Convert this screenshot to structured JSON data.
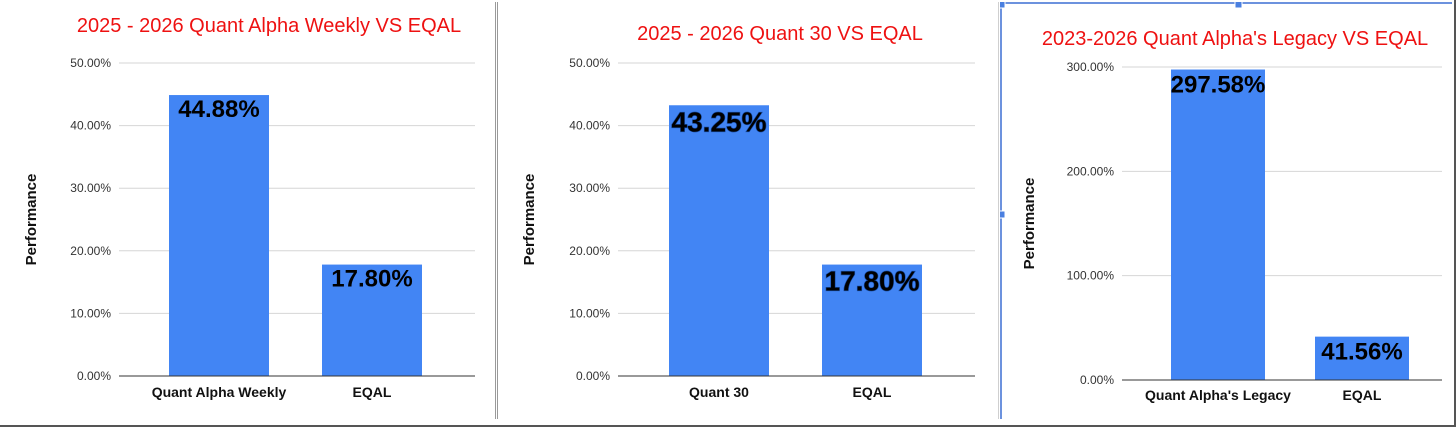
{
  "chart_data": [
    {
      "type": "bar",
      "title": "2025 - 2026 Quant Alpha Weekly VS EQAL",
      "xlabel": "",
      "ylabel": "Performance",
      "categories": [
        "Quant Alpha Weekly",
        "EQAL"
      ],
      "values": [
        44.88,
        17.8
      ],
      "value_labels": [
        "44.88%",
        "17.80%"
      ],
      "ylim": [
        0,
        50
      ],
      "yticks": [
        "0.00%",
        "10.00%",
        "20.00%",
        "30.00%",
        "40.00%",
        "50.00%"
      ],
      "grid": true,
      "bar_color": "#4285f4",
      "title_color": "#ee1111"
    },
    {
      "type": "bar",
      "title": "2025 - 2026 Quant 30 VS EQAL",
      "xlabel": "",
      "ylabel": "Performance",
      "categories": [
        "Quant 30",
        "EQAL"
      ],
      "values": [
        43.25,
        17.8
      ],
      "value_labels": [
        "43.25%",
        "17.80%"
      ],
      "ylim": [
        0,
        50
      ],
      "yticks": [
        "0.00%",
        "10.00%",
        "20.00%",
        "30.00%",
        "40.00%",
        "50.00%"
      ],
      "grid": true,
      "bar_color": "#4285f4",
      "title_color": "#ee1111"
    },
    {
      "type": "bar",
      "title": "2023-2026 Quant Alpha's Legacy VS EQAL",
      "xlabel": "",
      "ylabel": "Performance",
      "categories": [
        "Quant Alpha's Legacy",
        "EQAL"
      ],
      "values": [
        297.58,
        41.56
      ],
      "value_labels": [
        "297.58%",
        "41.56%"
      ],
      "ylim": [
        0,
        300
      ],
      "yticks": [
        "0.00%",
        "100.00%",
        "200.00%",
        "300.00%"
      ],
      "grid": true,
      "bar_color": "#4285f4",
      "title_color": "#ee1111"
    }
  ]
}
